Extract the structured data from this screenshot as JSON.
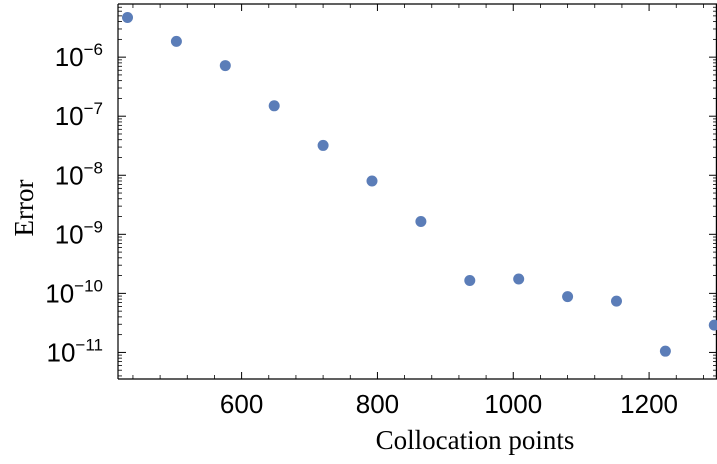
{
  "chart_data": {
    "type": "scatter",
    "title": "",
    "xlabel": "Collocation points",
    "ylabel": "Error",
    "xlim": [
      418,
      1300
    ],
    "ylim_exponent": [
      -11.45,
      -5.1
    ],
    "yscale": "log",
    "grid": false,
    "marker_color": "#5B7DB8",
    "x_ticks": [
      600,
      800,
      1000,
      1200
    ],
    "y_tick_exponents": [
      -11,
      -10,
      -9,
      -8,
      -7,
      -6
    ],
    "y_tick_base": "10",
    "series": [
      {
        "x": [
          432,
          504,
          576,
          648,
          720,
          792,
          864,
          936,
          1008,
          1080,
          1152,
          1224,
          1296
        ],
        "y": [
          4.7e-06,
          1.85e-06,
          7.2e-07,
          1.5e-07,
          3.2e-08,
          8e-09,
          1.65e-09,
          1.65e-10,
          1.75e-10,
          8.8e-11,
          7.4e-11,
          1.05e-11,
          2.9e-11
        ]
      }
    ]
  }
}
